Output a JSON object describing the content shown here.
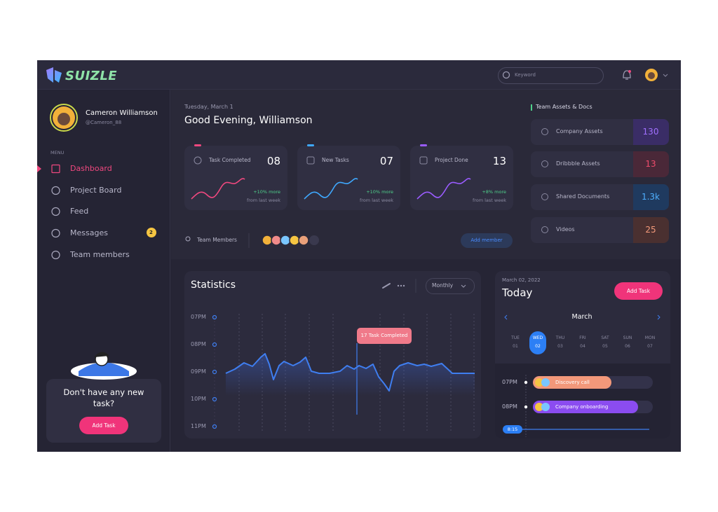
{
  "header": {
    "logo": "SUIZLE",
    "search_placeholder": "Keyword"
  },
  "profile": {
    "name": "Cameron Williamson",
    "handle": "@Cameron_88"
  },
  "menu": {
    "label": "MENU",
    "items": [
      {
        "label": "Dashboard"
      },
      {
        "label": "Project Board"
      },
      {
        "label": "Feed"
      },
      {
        "label": "Messages",
        "badge": "2"
      },
      {
        "label": "Team members"
      }
    ]
  },
  "promo": {
    "text": "Don't have any new task?",
    "button": "Add Task"
  },
  "greeting": {
    "date": "Tuesday, March 1",
    "title": "Good Evening, Williamson"
  },
  "stats_cards": [
    {
      "label": "Task Completed",
      "value": "08",
      "change": "+10% more",
      "note": "from last week"
    },
    {
      "label": "New Tasks",
      "value": "07",
      "change": "+10% more",
      "note": "from last week"
    },
    {
      "label": "Project Done",
      "value": "13",
      "change": "+8% more",
      "note": "from last week"
    }
  ],
  "team": {
    "label": "Team Members",
    "button": "Add member"
  },
  "assets": {
    "title": "Team Assets & Docs",
    "items": [
      {
        "label": "Company Assets",
        "count": "130"
      },
      {
        "label": "Dribbble Assets",
        "count": "13"
      },
      {
        "label": "Shared Documents",
        "count": "1.3k"
      },
      {
        "label": "Videos",
        "count": "25"
      }
    ]
  },
  "statistics": {
    "title": "Statistics",
    "period": "Monthly",
    "y_labels": [
      "07PM",
      "08PM",
      "09PM",
      "10PM",
      "11PM"
    ],
    "tooltip": "17 Task Completed"
  },
  "today": {
    "date": "March 02, 2022",
    "title": "Today",
    "button": "Add Task",
    "month": "March",
    "days": [
      {
        "name": "TUE",
        "num": "01"
      },
      {
        "name": "WED",
        "num": "02"
      },
      {
        "name": "THU",
        "num": "03"
      },
      {
        "name": "FRI",
        "num": "04"
      },
      {
        "name": "SAT",
        "num": "05"
      },
      {
        "name": "SUN",
        "num": "06"
      },
      {
        "name": "MON",
        "num": "07"
      }
    ],
    "events": [
      {
        "time": "07PM",
        "label": "Discovery call"
      },
      {
        "time": "08PM",
        "label": "Company onboarding"
      }
    ],
    "now": "8:15"
  }
}
